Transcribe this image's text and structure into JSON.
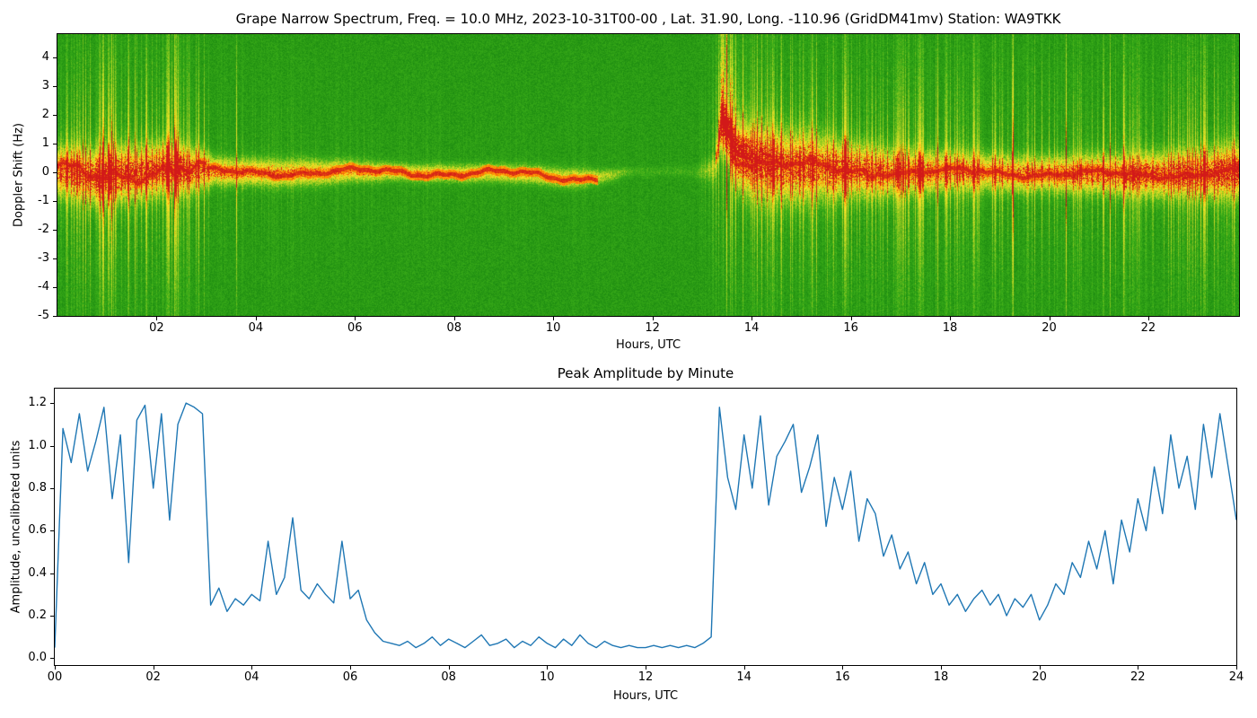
{
  "figure": {
    "background": "#ffffff",
    "station": "WA9TKK",
    "frequency_mhz": 10.0,
    "date": "2023-10-31T00-00",
    "latitude": 31.9,
    "longitude": -110.96,
    "grid_square": "DM41mv"
  },
  "chart_data": [
    {
      "type": "heatmap",
      "title": "Grape Narrow Spectrum, Freq. = 10.0 MHz, 2023-10-31T00-00 , Lat.  31.90, Long. -110.96 (GridDM41mv) Station: WA9TKK",
      "xlabel": "Hours, UTC",
      "ylabel": "Doppler Shift (Hz)",
      "x_range_hours": [
        0,
        23.83
      ],
      "y_range_hz": [
        -5,
        4.8
      ],
      "x_tick_values": [
        2,
        4,
        6,
        8,
        10,
        12,
        14,
        16,
        18,
        20,
        22
      ],
      "x_tick_labels": [
        "02",
        "04",
        "06",
        "08",
        "10",
        "12",
        "14",
        "16",
        "18",
        "20",
        "22"
      ],
      "y_tick_values": [
        4,
        3,
        2,
        1,
        0,
        -1,
        -2,
        -3,
        -4,
        -5
      ],
      "y_tick_labels": [
        "4",
        "3",
        "2",
        "1",
        "0",
        "-1",
        "-2",
        "-3",
        "-4",
        "-5"
      ],
      "description": "HF Doppler spectrogram: bright carrier trace near 0 Hz on green noise background; broadband noisy interval 00:00-03:00; narrow quiet carrier line 03:00-11:00; trace fades 11:00-13:15; sharp dawn Doppler spike to ~+4.5 Hz at ~13:20 followed by broadened noisy band through 24:00.",
      "colormap": [
        {
          "v": 0.0,
          "color": "#0d7a0d"
        },
        {
          "v": 0.3,
          "color": "#3caf19"
        },
        {
          "v": 0.55,
          "color": "#bed723"
        },
        {
          "v": 0.75,
          "color": "#ffe128"
        },
        {
          "v": 0.88,
          "color": "#ff8c00"
        },
        {
          "v": 1.0,
          "color": "#d21919"
        }
      ],
      "events": [
        {
          "t_start": 13.28,
          "t_peak": 13.38,
          "t_end": 14.3,
          "type": "dawn-doppler-spike",
          "peak_hz": 4.8
        }
      ],
      "carrier_trace": [
        {
          "t": 0.0,
          "center": -0.05,
          "sigma": 0.55,
          "amp": 0.8,
          "noise": 0.55
        },
        {
          "t": 0.8,
          "center": -0.15,
          "sigma": 0.6,
          "amp": 0.85,
          "noise": 0.6
        },
        {
          "t": 1.5,
          "center": 0.05,
          "sigma": 0.6,
          "amp": 0.85,
          "noise": 0.65
        },
        {
          "t": 2.3,
          "center": 0.15,
          "sigma": 0.55,
          "amp": 0.85,
          "noise": 0.7
        },
        {
          "t": 2.95,
          "center": 0.0,
          "sigma": 0.45,
          "amp": 0.8,
          "noise": 0.65
        },
        {
          "t": 3.15,
          "center": 0.0,
          "sigma": 0.3,
          "amp": 0.75,
          "noise": 0.12
        },
        {
          "t": 5.0,
          "center": 0.0,
          "sigma": 0.28,
          "amp": 0.7,
          "noise": 0.1
        },
        {
          "t": 7.0,
          "center": 0.0,
          "sigma": 0.18,
          "amp": 0.65,
          "noise": 0.06
        },
        {
          "t": 9.0,
          "center": -0.05,
          "sigma": 0.2,
          "amp": 0.6,
          "noise": 0.05
        },
        {
          "t": 10.5,
          "center": -0.2,
          "sigma": 0.22,
          "amp": 0.55,
          "noise": 0.05
        },
        {
          "t": 11.1,
          "center": -0.1,
          "sigma": 0.15,
          "amp": 0.4,
          "noise": 0.04
        },
        {
          "t": 11.6,
          "center": 0.0,
          "sigma": 0.12,
          "amp": 0.12,
          "noise": 0.03
        },
        {
          "t": 12.8,
          "center": 0.0,
          "sigma": 0.12,
          "amp": 0.1,
          "noise": 0.03
        },
        {
          "t": 13.25,
          "center": 0.1,
          "sigma": 0.3,
          "amp": 0.3,
          "noise": 0.2
        },
        {
          "t": 13.4,
          "center": 1.7,
          "sigma": 0.5,
          "amp": 0.9,
          "noise": 0.6
        },
        {
          "t": 13.7,
          "center": 0.55,
          "sigma": 0.7,
          "amp": 0.85,
          "noise": 0.6
        },
        {
          "t": 14.2,
          "center": 0.3,
          "sigma": 0.8,
          "amp": 0.85,
          "noise": 0.6
        },
        {
          "t": 15.0,
          "center": 0.15,
          "sigma": 0.75,
          "amp": 0.8,
          "noise": 0.55
        },
        {
          "t": 16.0,
          "center": 0.1,
          "sigma": 0.6,
          "amp": 0.8,
          "noise": 0.5
        },
        {
          "t": 17.0,
          "center": 0.0,
          "sigma": 0.5,
          "amp": 0.75,
          "noise": 0.45
        },
        {
          "t": 18.5,
          "center": 0.0,
          "sigma": 0.42,
          "amp": 0.7,
          "noise": 0.35
        },
        {
          "t": 20.0,
          "center": -0.05,
          "sigma": 0.38,
          "amp": 0.75,
          "noise": 0.3
        },
        {
          "t": 21.5,
          "center": -0.1,
          "sigma": 0.45,
          "amp": 0.8,
          "noise": 0.38
        },
        {
          "t": 22.8,
          "center": -0.05,
          "sigma": 0.5,
          "amp": 0.85,
          "noise": 0.45
        },
        {
          "t": 23.83,
          "center": 0.0,
          "sigma": 0.6,
          "amp": 0.9,
          "noise": 0.5
        }
      ]
    },
    {
      "type": "line",
      "title": "Peak Amplitude by Minute",
      "xlabel": "Hours, UTC",
      "ylabel": "Amplitude, uncalibrated units",
      "x_range": [
        0,
        24
      ],
      "y_range": [
        0,
        1.25
      ],
      "x_tick_values": [
        0,
        2,
        4,
        6,
        8,
        10,
        12,
        14,
        16,
        18,
        20,
        22,
        24
      ],
      "x_tick_labels": [
        "00",
        "02",
        "04",
        "06",
        "08",
        "10",
        "12",
        "14",
        "16",
        "18",
        "20",
        "22",
        "24"
      ],
      "y_tick_values": [
        0.0,
        0.2,
        0.4,
        0.6,
        0.8,
        1.0,
        1.2
      ],
      "y_tick_labels": [
        "0.0",
        "0.2",
        "0.4",
        "0.6",
        "0.8",
        "1.0",
        "1.2"
      ],
      "color": "#1f77b4",
      "x_start": 0,
      "x_step_hours": 0.1666667,
      "values": [
        0.05,
        1.08,
        0.92,
        1.15,
        0.88,
        1.02,
        1.18,
        0.75,
        1.05,
        0.45,
        1.12,
        1.19,
        0.8,
        1.15,
        0.65,
        1.1,
        1.2,
        1.18,
        1.15,
        0.25,
        0.33,
        0.22,
        0.28,
        0.25,
        0.3,
        0.27,
        0.55,
        0.3,
        0.38,
        0.66,
        0.32,
        0.28,
        0.35,
        0.3,
        0.26,
        0.55,
        0.28,
        0.32,
        0.18,
        0.12,
        0.08,
        0.07,
        0.06,
        0.08,
        0.05,
        0.07,
        0.1,
        0.06,
        0.09,
        0.07,
        0.05,
        0.08,
        0.11,
        0.06,
        0.07,
        0.09,
        0.05,
        0.08,
        0.06,
        0.1,
        0.07,
        0.05,
        0.09,
        0.06,
        0.11,
        0.07,
        0.05,
        0.08,
        0.06,
        0.05,
        0.06,
        0.05,
        0.05,
        0.06,
        0.05,
        0.06,
        0.05,
        0.06,
        0.05,
        0.07,
        0.1,
        1.18,
        0.85,
        0.7,
        1.05,
        0.8,
        1.14,
        0.72,
        0.95,
        1.02,
        1.1,
        0.78,
        0.9,
        1.05,
        0.62,
        0.85,
        0.7,
        0.88,
        0.55,
        0.75,
        0.68,
        0.48,
        0.58,
        0.42,
        0.5,
        0.35,
        0.45,
        0.3,
        0.35,
        0.25,
        0.3,
        0.22,
        0.28,
        0.32,
        0.25,
        0.3,
        0.2,
        0.28,
        0.24,
        0.3,
        0.18,
        0.25,
        0.35,
        0.3,
        0.45,
        0.38,
        0.55,
        0.42,
        0.6,
        0.35,
        0.65,
        0.5,
        0.75,
        0.6,
        0.9,
        0.68,
        1.05,
        0.8,
        0.95,
        0.7,
        1.1,
        0.85,
        1.15,
        0.9,
        0.65
      ]
    }
  ]
}
